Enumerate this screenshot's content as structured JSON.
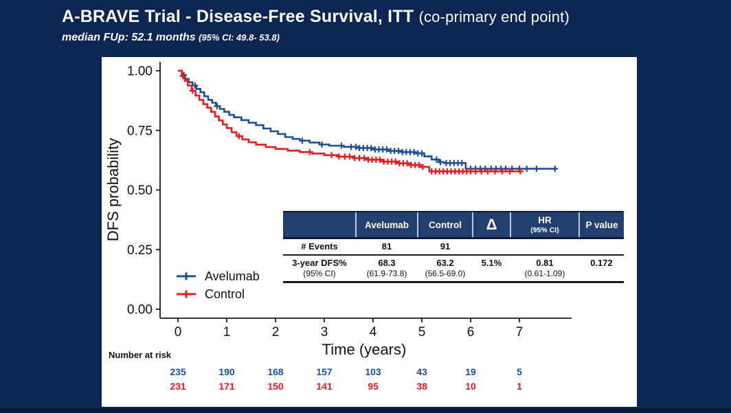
{
  "page": {
    "title_main": "A-BRAVE Trial - Disease-Free Survival, ITT",
    "title_paren": "(co-primary end point)",
    "subtitle_main": "median FUp: 52.1 months",
    "subtitle_paren": "(95% CI: 49.8- 53.8)"
  },
  "colors": {
    "background": "#0d2552",
    "panel": "#ffffff",
    "avelumab": "#1d4e9e",
    "control": "#e8191f",
    "table_header": "#223f6e",
    "axis": "#1a1a1a"
  },
  "chart_data": {
    "type": "line",
    "subtype": "kaplan-meier-step",
    "title": "",
    "xlabel": "Time (years)",
    "ylabel": "DFS probability",
    "xlim": [
      0,
      8.1
    ],
    "ylim": [
      0,
      1.0
    ],
    "grid": "off",
    "legend_position": "inside-bottom-left",
    "x_ticks": [
      "0",
      "1",
      "2",
      "3",
      "4",
      "5",
      "6",
      "7"
    ],
    "y_ticks": [
      "0.00",
      "0.25",
      "0.50",
      "0.75",
      "1.00"
    ],
    "series": [
      {
        "name": "Avelumab",
        "color": "#1d4e9e",
        "steps": [
          [
            0,
            1.0
          ],
          [
            0.08,
            0.983
          ],
          [
            0.15,
            0.966
          ],
          [
            0.22,
            0.952
          ],
          [
            0.3,
            0.938
          ],
          [
            0.38,
            0.924
          ],
          [
            0.46,
            0.91
          ],
          [
            0.54,
            0.893
          ],
          [
            0.62,
            0.878
          ],
          [
            0.7,
            0.866
          ],
          [
            0.78,
            0.852
          ],
          [
            0.86,
            0.84
          ],
          [
            0.95,
            0.828
          ],
          [
            1.05,
            0.815
          ],
          [
            1.15,
            0.805
          ],
          [
            1.3,
            0.793
          ],
          [
            1.45,
            0.782
          ],
          [
            1.6,
            0.772
          ],
          [
            1.75,
            0.758
          ],
          [
            1.9,
            0.746
          ],
          [
            2.05,
            0.735
          ],
          [
            2.2,
            0.722
          ],
          [
            2.35,
            0.714
          ],
          [
            2.5,
            0.707
          ],
          [
            2.7,
            0.699
          ],
          [
            2.9,
            0.691
          ],
          [
            3.1,
            0.686
          ],
          [
            3.4,
            0.681
          ],
          [
            3.7,
            0.676
          ],
          [
            4.0,
            0.67
          ],
          [
            4.3,
            0.664
          ],
          [
            4.6,
            0.659
          ],
          [
            4.85,
            0.654
          ],
          [
            5.05,
            0.641
          ],
          [
            5.2,
            0.628
          ],
          [
            5.35,
            0.617
          ],
          [
            5.45,
            0.613
          ],
          [
            5.9,
            0.589
          ],
          [
            7.75,
            0.589
          ]
        ],
        "censors": [
          0.12,
          0.35,
          0.8,
          2.55,
          2.95,
          3.35,
          3.55,
          3.65,
          3.72,
          3.8,
          3.88,
          3.96,
          4.04,
          4.12,
          4.2,
          4.28,
          4.36,
          4.44,
          4.52,
          4.6,
          4.68,
          4.76,
          4.84,
          4.92,
          5.0,
          5.3,
          5.38,
          5.5,
          5.58,
          5.66,
          5.74,
          5.82,
          6.0,
          6.1,
          6.2,
          6.3,
          6.42,
          6.52,
          6.62,
          6.72,
          6.85,
          7.0,
          7.15,
          7.35,
          7.73
        ]
      },
      {
        "name": "Control",
        "color": "#e8191f",
        "steps": [
          [
            0,
            1.0
          ],
          [
            0.08,
            0.978
          ],
          [
            0.14,
            0.958
          ],
          [
            0.2,
            0.938
          ],
          [
            0.28,
            0.916
          ],
          [
            0.36,
            0.896
          ],
          [
            0.44,
            0.878
          ],
          [
            0.52,
            0.86
          ],
          [
            0.6,
            0.845
          ],
          [
            0.68,
            0.828
          ],
          [
            0.76,
            0.808
          ],
          [
            0.84,
            0.792
          ],
          [
            0.92,
            0.775
          ],
          [
            1.0,
            0.76
          ],
          [
            1.1,
            0.742
          ],
          [
            1.2,
            0.726
          ],
          [
            1.32,
            0.712
          ],
          [
            1.45,
            0.7
          ],
          [
            1.6,
            0.69
          ],
          [
            1.8,
            0.68
          ],
          [
            2.0,
            0.672
          ],
          [
            2.25,
            0.665
          ],
          [
            2.5,
            0.659
          ],
          [
            2.75,
            0.653
          ],
          [
            3.0,
            0.646
          ],
          [
            3.3,
            0.64
          ],
          [
            3.6,
            0.634
          ],
          [
            3.9,
            0.627
          ],
          [
            4.2,
            0.619
          ],
          [
            4.5,
            0.612
          ],
          [
            4.75,
            0.605
          ],
          [
            4.95,
            0.597
          ],
          [
            5.15,
            0.578
          ],
          [
            7.05,
            0.578
          ]
        ],
        "censors": [
          0.1,
          0.3,
          1.25,
          2.7,
          3.15,
          3.3,
          3.42,
          3.52,
          3.62,
          3.72,
          3.82,
          3.9,
          3.98,
          4.06,
          4.14,
          4.22,
          4.3,
          4.38,
          4.46,
          4.54,
          4.62,
          4.7,
          4.78,
          4.86,
          4.94,
          5.02,
          5.2,
          5.28,
          5.36,
          5.44,
          5.52,
          5.6,
          5.68,
          5.76,
          5.84,
          5.92,
          6.0,
          6.1,
          6.22,
          6.35,
          6.5,
          6.65,
          6.8,
          7.02
        ]
      }
    ]
  },
  "results_table": {
    "headers": {
      "blank": "",
      "avelumab": "Avelumab",
      "control": "Control",
      "delta": "Δ",
      "hr": "HR",
      "hr_sub": "(95% CI)",
      "p_value": "P value"
    },
    "events": {
      "label": "# Events",
      "avelumab": "81",
      "control": "91"
    },
    "dfs": {
      "label": "3-year DFS%",
      "label_sub": "(95% CI)",
      "avelumab": "68.3",
      "avelumab_ci": "(61.9-73.8)",
      "control": "63.2",
      "control_ci": "(56.5-69.0)",
      "delta": "5.1%",
      "hr": "0.81",
      "hr_ci": "(0.61-1.09)",
      "p_value": "0.172"
    }
  },
  "risk_table": {
    "title": "Number at risk",
    "rows": [
      {
        "name": "Avelumab",
        "color": "#1d4e9e",
        "values": [
          "235",
          "190",
          "168",
          "157",
          "103",
          "43",
          "19",
          "5"
        ]
      },
      {
        "name": "Control",
        "color": "#e8191f",
        "values": [
          "231",
          "171",
          "150",
          "141",
          "95",
          "38",
          "10",
          "1"
        ]
      }
    ]
  }
}
